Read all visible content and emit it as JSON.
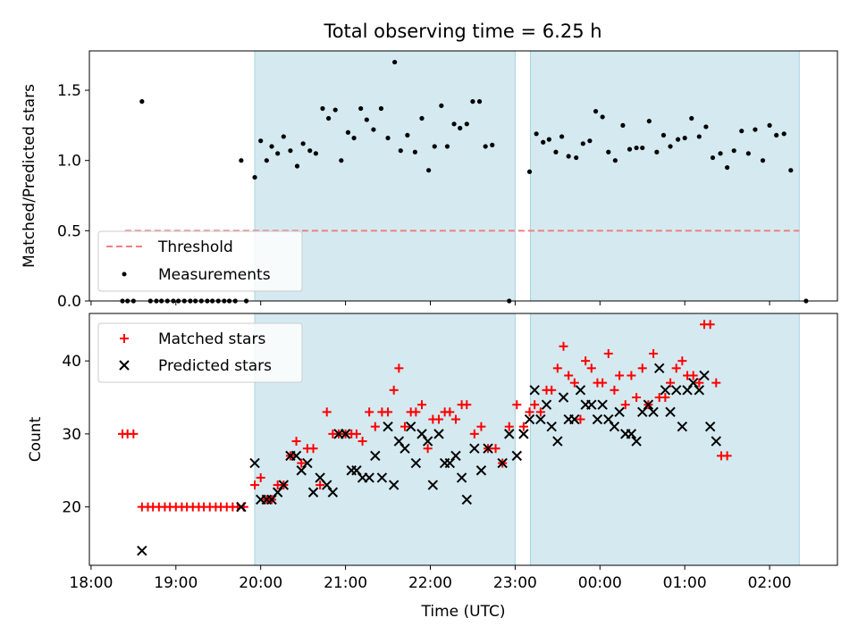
{
  "figure": {
    "title": "Total observing time = 6.25 h"
  },
  "colors": {
    "shade": "#d4eaf0",
    "shade_edge": "#a9d3dd",
    "threshold": "#f07f7f",
    "matched": "#ff0000",
    "predicted": "#000000"
  },
  "chart_data": [
    {
      "type": "scatter",
      "name": "ratio-panel",
      "ylabel": "Matched/Predicted stars",
      "ylim": [
        0,
        1.78
      ],
      "yticks": [
        "0.0",
        "0.5",
        "1.0",
        "1.5"
      ],
      "legend": {
        "placement": "lower-left",
        "threshold_label": "Threshold",
        "measurements_label": "Measurements"
      },
      "threshold": 0.5,
      "threshold_x": [
        18.4,
        26.35
      ],
      "observing_windows": [
        [
          19.93,
          23.0
        ],
        [
          23.18,
          26.35
        ]
      ],
      "points": [
        [
          18.37,
          0
        ],
        [
          18.43,
          0
        ],
        [
          18.5,
          0
        ],
        [
          18.6,
          1.42
        ],
        [
          18.7,
          0
        ],
        [
          18.77,
          0
        ],
        [
          18.83,
          0
        ],
        [
          18.9,
          0
        ],
        [
          18.97,
          0
        ],
        [
          19.03,
          0
        ],
        [
          19.1,
          0
        ],
        [
          19.17,
          0
        ],
        [
          19.23,
          0
        ],
        [
          19.3,
          0
        ],
        [
          19.37,
          0
        ],
        [
          19.43,
          0
        ],
        [
          19.5,
          0
        ],
        [
          19.57,
          0
        ],
        [
          19.63,
          0
        ],
        [
          19.7,
          0
        ],
        [
          19.77,
          1.0
        ],
        [
          19.83,
          0
        ],
        [
          19.93,
          0.88
        ],
        [
          20.0,
          1.14
        ],
        [
          20.07,
          1.0
        ],
        [
          20.13,
          1.1
        ],
        [
          20.2,
          1.05
        ],
        [
          20.27,
          1.17
        ],
        [
          20.35,
          1.07
        ],
        [
          20.43,
          0.96
        ],
        [
          20.5,
          1.12
        ],
        [
          20.58,
          1.07
        ],
        [
          20.65,
          1.05
        ],
        [
          20.73,
          1.37
        ],
        [
          20.8,
          1.3
        ],
        [
          20.88,
          1.36
        ],
        [
          20.95,
          1.0
        ],
        [
          21.03,
          1.2
        ],
        [
          21.1,
          1.16
        ],
        [
          21.18,
          1.37
        ],
        [
          21.25,
          1.29
        ],
        [
          21.33,
          1.22
        ],
        [
          21.42,
          1.37
        ],
        [
          21.5,
          1.16
        ],
        [
          21.58,
          1.7
        ],
        [
          21.65,
          1.07
        ],
        [
          21.73,
          1.18
        ],
        [
          21.82,
          1.06
        ],
        [
          21.9,
          1.3
        ],
        [
          21.98,
          0.93
        ],
        [
          22.05,
          1.1
        ],
        [
          22.13,
          1.39
        ],
        [
          22.2,
          1.1
        ],
        [
          22.28,
          1.26
        ],
        [
          22.35,
          1.23
        ],
        [
          22.43,
          1.26
        ],
        [
          22.5,
          1.42
        ],
        [
          22.58,
          1.42
        ],
        [
          22.65,
          1.1
        ],
        [
          22.73,
          1.11
        ],
        [
          22.93,
          0
        ],
        [
          23.17,
          0.92
        ],
        [
          23.25,
          1.19
        ],
        [
          23.33,
          1.13
        ],
        [
          23.4,
          1.15
        ],
        [
          23.48,
          1.06
        ],
        [
          23.55,
          1.17
        ],
        [
          23.63,
          1.03
        ],
        [
          23.72,
          1.02
        ],
        [
          23.8,
          1.12
        ],
        [
          23.88,
          1.14
        ],
        [
          23.95,
          1.35
        ],
        [
          24.03,
          1.31
        ],
        [
          24.1,
          1.06
        ],
        [
          24.18,
          1.0
        ],
        [
          24.27,
          1.25
        ],
        [
          24.35,
          1.08
        ],
        [
          24.43,
          1.09
        ],
        [
          24.5,
          1.09
        ],
        [
          24.58,
          1.28
        ],
        [
          24.67,
          1.06
        ],
        [
          24.75,
          1.18
        ],
        [
          24.83,
          1.1
        ],
        [
          24.92,
          1.15
        ],
        [
          25.0,
          1.16
        ],
        [
          25.08,
          1.3
        ],
        [
          25.17,
          1.17
        ],
        [
          25.25,
          1.24
        ],
        [
          25.33,
          1.02
        ],
        [
          25.42,
          1.05
        ],
        [
          25.5,
          0.95
        ],
        [
          25.58,
          1.07
        ],
        [
          25.67,
          1.21
        ],
        [
          25.75,
          1.05
        ],
        [
          25.83,
          1.22
        ],
        [
          25.92,
          1.0
        ],
        [
          26.0,
          1.25
        ],
        [
          26.08,
          1.18
        ],
        [
          26.17,
          1.19
        ],
        [
          26.25,
          0.93
        ],
        [
          26.43,
          0
        ]
      ]
    },
    {
      "type": "scatter",
      "name": "count-panel",
      "ylabel": "Count",
      "xlabel": "Time (UTC)",
      "ylim": [
        12,
        46.5
      ],
      "yticks": [
        "20",
        "30",
        "40"
      ],
      "xticks": [
        "18:00",
        "19:00",
        "20:00",
        "21:00",
        "22:00",
        "23:00",
        "00:00",
        "01:00",
        "02:00"
      ],
      "legend": {
        "placement": "upper-left",
        "matched_label": "Matched stars",
        "predicted_label": "Predicted stars"
      },
      "series": [
        {
          "name": "Matched stars",
          "points": [
            [
              18.37,
              30
            ],
            [
              18.43,
              30
            ],
            [
              18.5,
              30
            ],
            [
              18.6,
              20
            ],
            [
              18.67,
              20
            ],
            [
              18.73,
              20
            ],
            [
              18.8,
              20
            ],
            [
              18.87,
              20
            ],
            [
              18.93,
              20
            ],
            [
              19.0,
              20
            ],
            [
              19.07,
              20
            ],
            [
              19.13,
              20
            ],
            [
              19.2,
              20
            ],
            [
              19.27,
              20
            ],
            [
              19.33,
              20
            ],
            [
              19.4,
              20
            ],
            [
              19.47,
              20
            ],
            [
              19.53,
              20
            ],
            [
              19.6,
              20
            ],
            [
              19.67,
              20
            ],
            [
              19.73,
              20
            ],
            [
              19.8,
              20
            ],
            [
              19.93,
              23
            ],
            [
              20.0,
              24
            ],
            [
              20.07,
              21
            ],
            [
              20.13,
              21
            ],
            [
              20.2,
              23
            ],
            [
              20.27,
              23
            ],
            [
              20.35,
              27
            ],
            [
              20.42,
              29
            ],
            [
              20.48,
              26
            ],
            [
              20.55,
              28
            ],
            [
              20.62,
              28
            ],
            [
              20.7,
              23
            ],
            [
              20.78,
              33
            ],
            [
              20.85,
              30
            ],
            [
              20.92,
              30
            ],
            [
              21.0,
              30
            ],
            [
              21.07,
              30
            ],
            [
              21.13,
              30
            ],
            [
              21.2,
              29
            ],
            [
              21.28,
              33
            ],
            [
              21.35,
              31
            ],
            [
              21.43,
              33
            ],
            [
              21.5,
              33
            ],
            [
              21.57,
              36
            ],
            [
              21.63,
              39
            ],
            [
              21.7,
              31
            ],
            [
              21.77,
              33
            ],
            [
              21.83,
              33
            ],
            [
              21.9,
              34
            ],
            [
              21.97,
              28
            ],
            [
              22.03,
              32
            ],
            [
              22.1,
              32
            ],
            [
              22.17,
              33
            ],
            [
              22.23,
              33
            ],
            [
              22.3,
              32
            ],
            [
              22.37,
              34
            ],
            [
              22.43,
              34
            ],
            [
              22.52,
              30
            ],
            [
              22.6,
              31
            ],
            [
              22.68,
              28
            ],
            [
              22.77,
              28
            ],
            [
              22.85,
              26
            ],
            [
              22.93,
              31
            ],
            [
              23.02,
              34
            ],
            [
              23.1,
              31
            ],
            [
              23.17,
              33
            ],
            [
              23.23,
              34
            ],
            [
              23.3,
              33
            ],
            [
              23.37,
              36
            ],
            [
              23.43,
              36
            ],
            [
              23.5,
              39
            ],
            [
              23.57,
              42
            ],
            [
              23.63,
              38
            ],
            [
              23.7,
              37
            ],
            [
              23.77,
              32
            ],
            [
              23.83,
              40
            ],
            [
              23.9,
              39
            ],
            [
              23.97,
              37
            ],
            [
              24.03,
              37
            ],
            [
              24.1,
              41
            ],
            [
              24.17,
              36
            ],
            [
              24.23,
              38
            ],
            [
              24.3,
              34
            ],
            [
              24.37,
              38
            ],
            [
              24.43,
              35
            ],
            [
              24.5,
              39
            ],
            [
              24.57,
              34
            ],
            [
              24.63,
              41
            ],
            [
              24.7,
              35
            ],
            [
              24.77,
              35
            ],
            [
              24.83,
              37
            ],
            [
              24.9,
              39
            ],
            [
              24.97,
              40
            ],
            [
              25.03,
              38
            ],
            [
              25.1,
              38
            ],
            [
              25.17,
              37
            ],
            [
              25.23,
              45
            ],
            [
              25.3,
              45
            ],
            [
              25.37,
              37
            ],
            [
              25.43,
              27
            ],
            [
              25.5,
              27
            ]
          ]
        },
        {
          "name": "Predicted stars",
          "points": [
            [
              18.6,
              14
            ],
            [
              19.77,
              20
            ],
            [
              19.93,
              26
            ],
            [
              20.0,
              21
            ],
            [
              20.07,
              21
            ],
            [
              20.13,
              21
            ],
            [
              20.2,
              22
            ],
            [
              20.27,
              23
            ],
            [
              20.35,
              27
            ],
            [
              20.42,
              27
            ],
            [
              20.48,
              25
            ],
            [
              20.55,
              26
            ],
            [
              20.62,
              22
            ],
            [
              20.7,
              24
            ],
            [
              20.78,
              23
            ],
            [
              20.85,
              22
            ],
            [
              20.92,
              30
            ],
            [
              21.0,
              30
            ],
            [
              21.07,
              25
            ],
            [
              21.13,
              25
            ],
            [
              21.2,
              24
            ],
            [
              21.28,
              24
            ],
            [
              21.35,
              27
            ],
            [
              21.43,
              24
            ],
            [
              21.5,
              31
            ],
            [
              21.57,
              23
            ],
            [
              21.63,
              29
            ],
            [
              21.7,
              28
            ],
            [
              21.77,
              31
            ],
            [
              21.83,
              26
            ],
            [
              21.9,
              30
            ],
            [
              21.97,
              29
            ],
            [
              22.03,
              23
            ],
            [
              22.1,
              30
            ],
            [
              22.17,
              26
            ],
            [
              22.23,
              26
            ],
            [
              22.3,
              27
            ],
            [
              22.37,
              24
            ],
            [
              22.43,
              21
            ],
            [
              22.52,
              28
            ],
            [
              22.6,
              25
            ],
            [
              22.68,
              28
            ],
            [
              22.85,
              26
            ],
            [
              22.93,
              30
            ],
            [
              23.02,
              27
            ],
            [
              23.1,
              30
            ],
            [
              23.17,
              32
            ],
            [
              23.23,
              36
            ],
            [
              23.3,
              32
            ],
            [
              23.37,
              34
            ],
            [
              23.43,
              31
            ],
            [
              23.5,
              29
            ],
            [
              23.57,
              35
            ],
            [
              23.63,
              32
            ],
            [
              23.7,
              32
            ],
            [
              23.77,
              36
            ],
            [
              23.83,
              34
            ],
            [
              23.9,
              34
            ],
            [
              23.97,
              32
            ],
            [
              24.03,
              34
            ],
            [
              24.1,
              32
            ],
            [
              24.17,
              31
            ],
            [
              24.23,
              33
            ],
            [
              24.3,
              30
            ],
            [
              24.37,
              30
            ],
            [
              24.43,
              29
            ],
            [
              24.5,
              33
            ],
            [
              24.57,
              34
            ],
            [
              24.63,
              33
            ],
            [
              24.7,
              39
            ],
            [
              24.77,
              36
            ],
            [
              24.83,
              33
            ],
            [
              24.9,
              36
            ],
            [
              24.97,
              31
            ],
            [
              25.03,
              36
            ],
            [
              25.1,
              37
            ],
            [
              25.17,
              36
            ],
            [
              25.23,
              38
            ],
            [
              25.3,
              31
            ],
            [
              25.37,
              29
            ]
          ]
        }
      ]
    }
  ]
}
